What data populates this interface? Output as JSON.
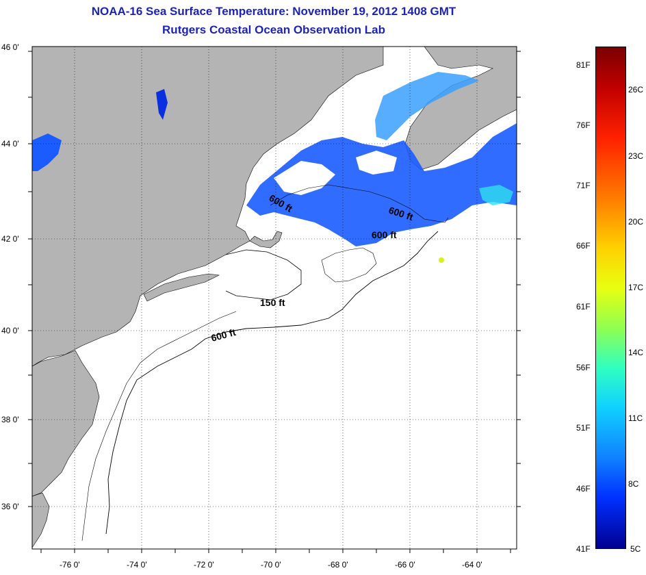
{
  "title": "NOAA-16 Sea Surface Temperature:  November 19, 2012 1408 GMT",
  "subtitle": "Rutgers Coastal Ocean Observation Lab",
  "map": {
    "lat_labels": [
      "46 0'",
      "44 0'",
      "42 0'",
      "40 0'",
      "38 0'",
      "36 0'"
    ],
    "lon_labels": [
      "-76 0'",
      "-74 0'",
      "-72 0'",
      "-70 0'",
      "-68 0'",
      "-66 0'",
      "-64 0'"
    ],
    "contour_labels": [
      "600 ft",
      "600 ft",
      "600 ft",
      "150 ft",
      "600 ft"
    ],
    "colors": {
      "land": "#b4b4b4",
      "ocean": "#ffffff",
      "sst_blue": "#1a5cff",
      "sst_dark_blue": "#0a2fe0",
      "sst_light_blue": "#3aa0ff",
      "sst_cyan": "#2ee0f0"
    }
  },
  "colorbar": {
    "fahrenheit_labels": [
      "81F",
      "76F",
      "71F",
      "66F",
      "61F",
      "56F",
      "51F",
      "46F",
      "41F"
    ],
    "celsius_labels": [
      "26C",
      "23C",
      "20C",
      "17C",
      "14C",
      "11C",
      "8C",
      "5C"
    ]
  }
}
